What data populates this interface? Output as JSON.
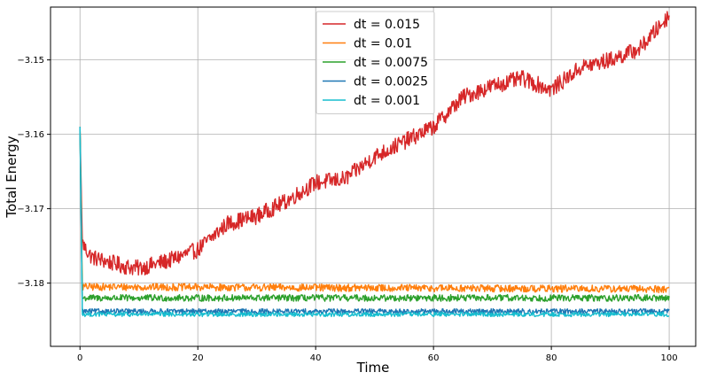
{
  "chart_data": {
    "type": "line",
    "title": "",
    "xlabel": "Time",
    "ylabel": "Total Energy",
    "xlim": [
      -5,
      104.5
    ],
    "ylim": [
      -3.1885,
      -3.1429
    ],
    "xticks": [
      0,
      20,
      40,
      60,
      80,
      100
    ],
    "xtick_labels": [
      "0",
      "20",
      "40",
      "60",
      "80",
      "100"
    ],
    "yticks": [
      -3.18,
      -3.17,
      -3.16,
      -3.15
    ],
    "ytick_labels": [
      "−3.18",
      "−3.17",
      "−3.16",
      "−3.15"
    ],
    "grid": true,
    "legend_position": "top-center",
    "series": [
      {
        "name": "dt = 0.015",
        "color": "#d62728",
        "noise": 0.0011,
        "points": [
          [
            0,
            -3.159
          ],
          [
            0.4,
            -3.1745
          ],
          [
            1,
            -3.1755
          ],
          [
            2,
            -3.1765
          ],
          [
            5,
            -3.1772
          ],
          [
            8,
            -3.1778
          ],
          [
            10,
            -3.178
          ],
          [
            15,
            -3.177
          ],
          [
            20,
            -3.1755
          ],
          [
            25,
            -3.172
          ],
          [
            30,
            -3.171
          ],
          [
            35,
            -3.169
          ],
          [
            40,
            -3.1665
          ],
          [
            45,
            -3.166
          ],
          [
            50,
            -3.163
          ],
          [
            55,
            -3.161
          ],
          [
            60,
            -3.159
          ],
          [
            65,
            -3.155
          ],
          [
            70,
            -3.1535
          ],
          [
            75,
            -3.1525
          ],
          [
            80,
            -3.154
          ],
          [
            85,
            -3.151
          ],
          [
            90,
            -3.15
          ],
          [
            95,
            -3.1485
          ],
          [
            100,
            -3.144
          ]
        ]
      },
      {
        "name": "dt = 0.01",
        "color": "#ff7f0e",
        "noise": 0.0005,
        "points": [
          [
            0,
            -3.159
          ],
          [
            0.4,
            -3.1805
          ],
          [
            100,
            -3.1808
          ]
        ]
      },
      {
        "name": "dt = 0.0075",
        "color": "#2ca02c",
        "noise": 0.00045,
        "points": [
          [
            0,
            -3.159
          ],
          [
            0.4,
            -3.182
          ],
          [
            100,
            -3.182
          ]
        ]
      },
      {
        "name": "dt = 0.0025",
        "color": "#1f77b4",
        "noise": 0.00035,
        "points": [
          [
            0,
            -3.159
          ],
          [
            0.4,
            -3.1838
          ],
          [
            100,
            -3.1838
          ]
        ]
      },
      {
        "name": "dt = 0.001",
        "color": "#17becf",
        "noise": 0.0003,
        "points": [
          [
            0,
            -3.159
          ],
          [
            0.4,
            -3.1842
          ],
          [
            100,
            -3.1842
          ]
        ]
      }
    ]
  }
}
